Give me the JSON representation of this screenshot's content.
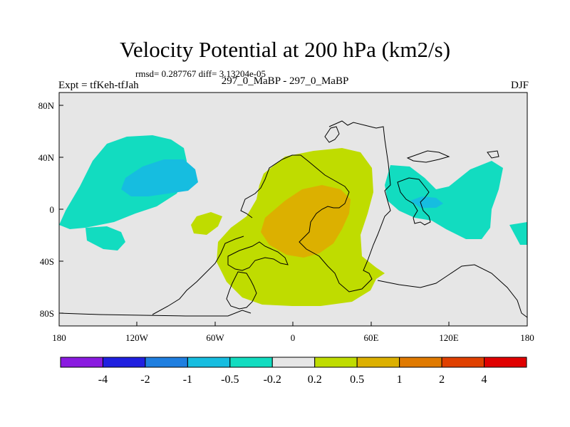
{
  "chart_data": {
    "type": "contour-map",
    "title": "Velocity Potential at 200 hPa (km2/s)",
    "stats_text": "rmsd= 0.287767 diff= 3.13204e-05",
    "left_label": "Expt = tfKeh-tfJah",
    "center_label": "297_0_MaBP - 297_0_MaBP",
    "right_label": "DJF",
    "x_ticks": [
      "180",
      "120W",
      "60W",
      "0",
      "60E",
      "120E",
      "180"
    ],
    "y_ticks": [
      "80N",
      "40N",
      "0",
      "40S",
      "80S"
    ],
    "colorbar": {
      "labels": [
        "-4",
        "-2",
        "-1",
        "-0.5",
        "-0.2",
        "0.2",
        "0.5",
        "1",
        "2",
        "4"
      ],
      "colors": [
        "#8a1be0",
        "#2020e0",
        "#1f7fe0",
        "#16bde0",
        "#12dcc0",
        "#e6e6e6",
        "#bfdc00",
        "#dcb000",
        "#e07a00",
        "#e04000",
        "#e00000"
      ]
    },
    "background_color": "#e6e6e6"
  }
}
